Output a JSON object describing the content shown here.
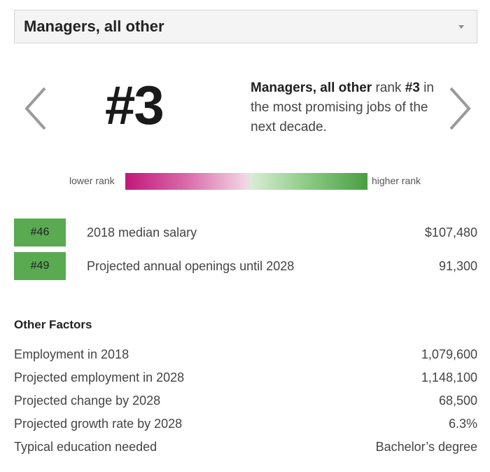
{
  "selector": {
    "value": "Managers, all other"
  },
  "rank": {
    "big": "#3",
    "occupation": "Managers, all other",
    "word_rank": " rank ",
    "rank_text": "#3",
    "rest": " in the most promising jobs of the next decade."
  },
  "scale": {
    "lower_label": "lower rank",
    "higher_label": "higher rank",
    "colors": [
      "#c2187b",
      "#f2d6e5",
      "#d9ecd5",
      "#4a9e45"
    ]
  },
  "metrics": [
    {
      "badge": "#46",
      "label": "2018 median salary",
      "value": "$107,480"
    },
    {
      "badge": "#49",
      "label": "Projected annual openings until 2028",
      "value": "91,300"
    }
  ],
  "factors": {
    "heading": "Other Factors",
    "rows": [
      {
        "label": "Employment in 2018",
        "value": "1,079,600"
      },
      {
        "label": "Projected employment in 2028",
        "value": "1,148,100"
      },
      {
        "label": "Projected change by 2028",
        "value": "68,500"
      },
      {
        "label": "Projected growth rate by 2028",
        "value": "6.3%"
      },
      {
        "label": "Typical education needed",
        "value": "Bachelor’s degree"
      }
    ]
  },
  "icons": {
    "prev": "chevron-left-icon",
    "next": "chevron-right-icon",
    "caret": "caret-down-icon"
  }
}
